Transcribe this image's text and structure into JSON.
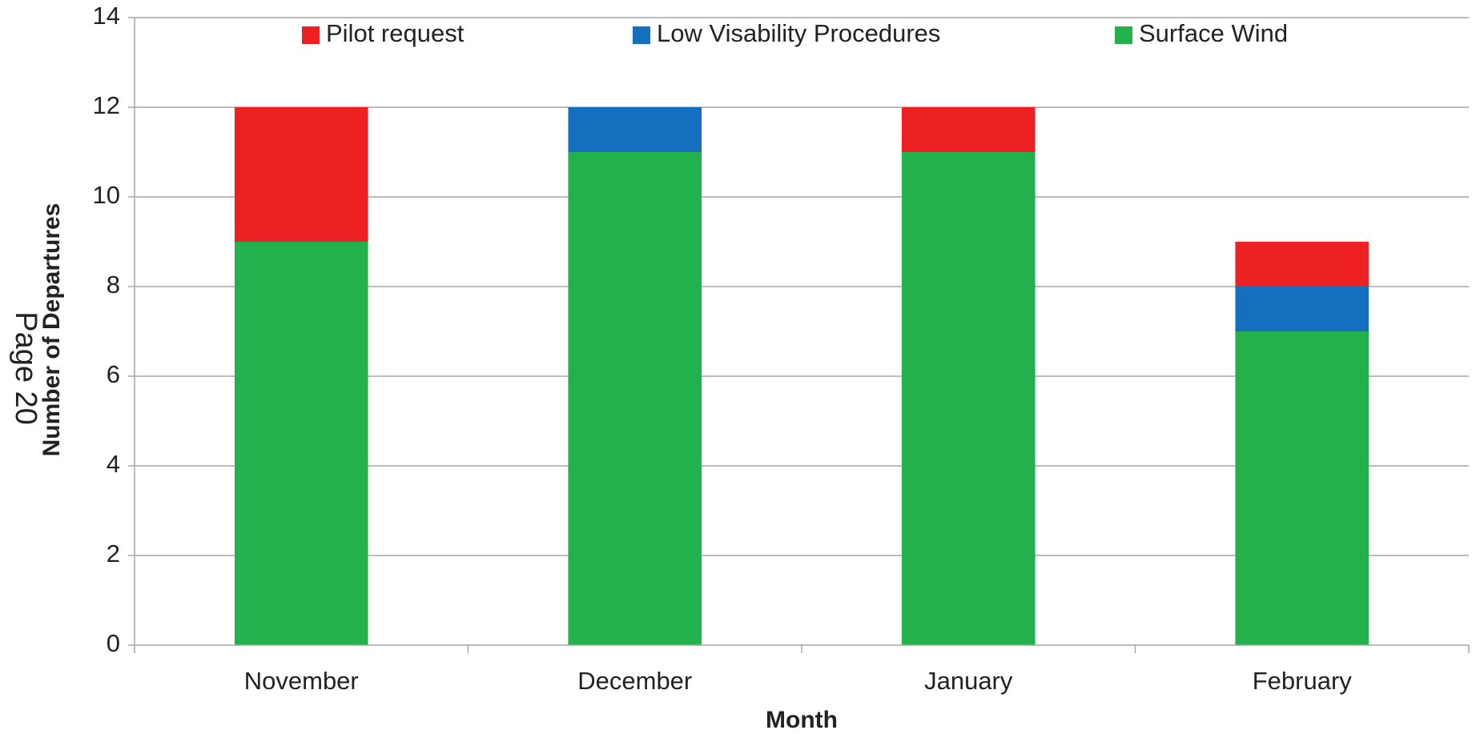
{
  "chart_data": {
    "type": "stacked_bar",
    "y_axis_label": "Number of Departures",
    "x_axis_label": "Month",
    "page_label": "Page 20",
    "categories": [
      "November",
      "December",
      "January",
      "February"
    ],
    "series": [
      {
        "name": "Surface Wind",
        "color": "#23b14d",
        "values": [
          9,
          11,
          11,
          7
        ]
      },
      {
        "name": "Low Visability Procedures",
        "color": "#1470be",
        "values": [
          0,
          1,
          0,
          1
        ]
      },
      {
        "name": "Pilot request",
        "color": "#ed2024",
        "values": [
          3,
          0,
          1,
          1
        ]
      }
    ],
    "legend_order": [
      "Pilot request",
      "Low Visability Procedures",
      "Surface Wind"
    ],
    "ylim": [
      0,
      14
    ],
    "yticks": [
      0,
      2,
      4,
      6,
      8,
      10,
      12,
      14
    ],
    "grid": true
  }
}
